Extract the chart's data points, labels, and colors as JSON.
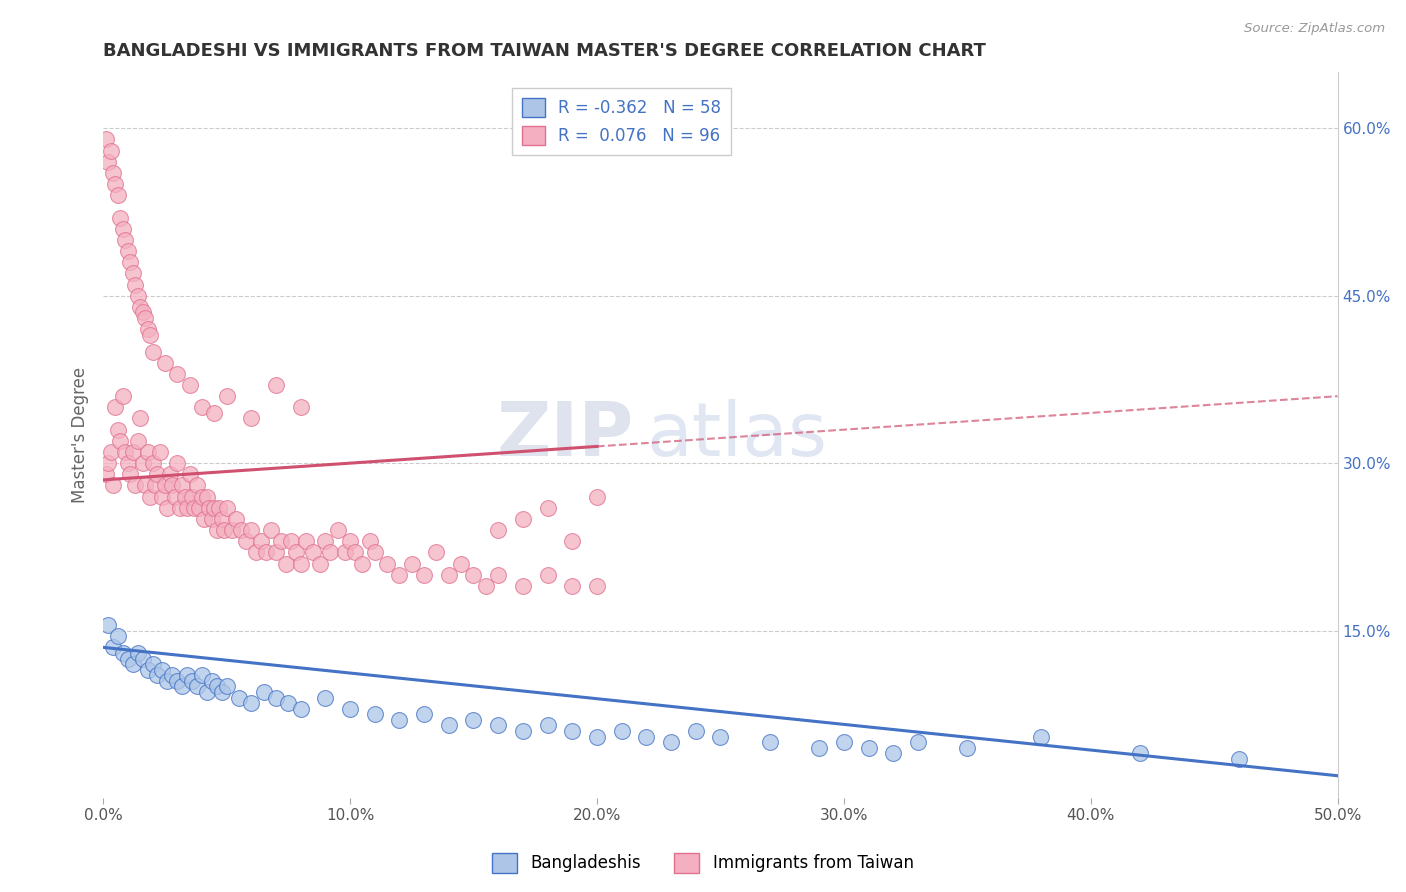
{
  "title": "BANGLADESHI VS IMMIGRANTS FROM TAIWAN MASTER'S DEGREE CORRELATION CHART",
  "source": "Source: ZipAtlas.com",
  "ylabel": "Master's Degree",
  "xlim": [
    0.0,
    0.5
  ],
  "ylim": [
    0.0,
    0.65
  ],
  "xtick_labels": [
    "0.0%",
    "10.0%",
    "20.0%",
    "30.0%",
    "40.0%",
    "50.0%"
  ],
  "xtick_vals": [
    0.0,
    0.1,
    0.2,
    0.3,
    0.4,
    0.5
  ],
  "ytick_labels_right": [
    "15.0%",
    "30.0%",
    "45.0%",
    "60.0%"
  ],
  "ytick_vals_right": [
    0.15,
    0.3,
    0.45,
    0.6
  ],
  "blue_fill": "#adc6e8",
  "pink_fill": "#f4b0c0",
  "blue_edge": "#4472c4",
  "pink_edge": "#e07090",
  "blue_line_color": "#4472c4",
  "pink_line_color": "#d05070",
  "blue_R": -0.362,
  "blue_N": 58,
  "pink_R": 0.076,
  "pink_N": 96,
  "watermark_zip": "ZIP",
  "watermark_atlas": "atlas",
  "legend_label_blue": "Bangladeshis",
  "legend_label_pink": "Immigrants from Taiwan",
  "blue_scatter_x": [
    0.002,
    0.004,
    0.006,
    0.008,
    0.01,
    0.012,
    0.014,
    0.016,
    0.018,
    0.02,
    0.022,
    0.024,
    0.026,
    0.028,
    0.03,
    0.032,
    0.034,
    0.036,
    0.038,
    0.04,
    0.042,
    0.044,
    0.046,
    0.048,
    0.05,
    0.055,
    0.06,
    0.065,
    0.07,
    0.075,
    0.08,
    0.09,
    0.1,
    0.11,
    0.12,
    0.13,
    0.14,
    0.15,
    0.16,
    0.17,
    0.18,
    0.19,
    0.2,
    0.21,
    0.22,
    0.23,
    0.24,
    0.25,
    0.27,
    0.29,
    0.3,
    0.31,
    0.32,
    0.33,
    0.35,
    0.38,
    0.42,
    0.46
  ],
  "blue_scatter_y": [
    0.155,
    0.135,
    0.145,
    0.13,
    0.125,
    0.12,
    0.13,
    0.125,
    0.115,
    0.12,
    0.11,
    0.115,
    0.105,
    0.11,
    0.105,
    0.1,
    0.11,
    0.105,
    0.1,
    0.11,
    0.095,
    0.105,
    0.1,
    0.095,
    0.1,
    0.09,
    0.085,
    0.095,
    0.09,
    0.085,
    0.08,
    0.09,
    0.08,
    0.075,
    0.07,
    0.075,
    0.065,
    0.07,
    0.065,
    0.06,
    0.065,
    0.06,
    0.055,
    0.06,
    0.055,
    0.05,
    0.06,
    0.055,
    0.05,
    0.045,
    0.05,
    0.045,
    0.04,
    0.05,
    0.045,
    0.055,
    0.04,
    0.035
  ],
  "pink_scatter_x": [
    0.001,
    0.002,
    0.003,
    0.004,
    0.005,
    0.006,
    0.007,
    0.008,
    0.009,
    0.01,
    0.011,
    0.012,
    0.013,
    0.014,
    0.015,
    0.016,
    0.017,
    0.018,
    0.019,
    0.02,
    0.021,
    0.022,
    0.023,
    0.024,
    0.025,
    0.026,
    0.027,
    0.028,
    0.029,
    0.03,
    0.031,
    0.032,
    0.033,
    0.034,
    0.035,
    0.036,
    0.037,
    0.038,
    0.039,
    0.04,
    0.041,
    0.042,
    0.043,
    0.044,
    0.045,
    0.046,
    0.047,
    0.048,
    0.049,
    0.05,
    0.052,
    0.054,
    0.056,
    0.058,
    0.06,
    0.062,
    0.064,
    0.066,
    0.068,
    0.07,
    0.072,
    0.074,
    0.076,
    0.078,
    0.08,
    0.082,
    0.085,
    0.088,
    0.09,
    0.092,
    0.095,
    0.098,
    0.1,
    0.102,
    0.105,
    0.108,
    0.11,
    0.115,
    0.12,
    0.125,
    0.13,
    0.135,
    0.14,
    0.145,
    0.15,
    0.155,
    0.16,
    0.17,
    0.18,
    0.19,
    0.2,
    0.2,
    0.19,
    0.18,
    0.17,
    0.16
  ],
  "pink_scatter_y": [
    0.29,
    0.3,
    0.31,
    0.28,
    0.35,
    0.33,
    0.32,
    0.36,
    0.31,
    0.3,
    0.29,
    0.31,
    0.28,
    0.32,
    0.34,
    0.3,
    0.28,
    0.31,
    0.27,
    0.3,
    0.28,
    0.29,
    0.31,
    0.27,
    0.28,
    0.26,
    0.29,
    0.28,
    0.27,
    0.3,
    0.26,
    0.28,
    0.27,
    0.26,
    0.29,
    0.27,
    0.26,
    0.28,
    0.26,
    0.27,
    0.25,
    0.27,
    0.26,
    0.25,
    0.26,
    0.24,
    0.26,
    0.25,
    0.24,
    0.26,
    0.24,
    0.25,
    0.24,
    0.23,
    0.24,
    0.22,
    0.23,
    0.22,
    0.24,
    0.22,
    0.23,
    0.21,
    0.23,
    0.22,
    0.21,
    0.23,
    0.22,
    0.21,
    0.23,
    0.22,
    0.24,
    0.22,
    0.23,
    0.22,
    0.21,
    0.23,
    0.22,
    0.21,
    0.2,
    0.21,
    0.2,
    0.22,
    0.2,
    0.21,
    0.2,
    0.19,
    0.2,
    0.19,
    0.2,
    0.19,
    0.19,
    0.27,
    0.23,
    0.26,
    0.25,
    0.24
  ],
  "pink_scatter_high_x": [
    0.001,
    0.002,
    0.003,
    0.004,
    0.005,
    0.006,
    0.007,
    0.008,
    0.009,
    0.01,
    0.011,
    0.012,
    0.013,
    0.014,
    0.015,
    0.016,
    0.017,
    0.018,
    0.019,
    0.02,
    0.025,
    0.03,
    0.035,
    0.04,
    0.045,
    0.05,
    0.06,
    0.07,
    0.08
  ],
  "pink_scatter_high_y": [
    0.59,
    0.57,
    0.58,
    0.56,
    0.55,
    0.54,
    0.52,
    0.51,
    0.5,
    0.49,
    0.48,
    0.47,
    0.46,
    0.45,
    0.44,
    0.435,
    0.43,
    0.42,
    0.415,
    0.4,
    0.39,
    0.38,
    0.37,
    0.35,
    0.345,
    0.36,
    0.34,
    0.37,
    0.35
  ],
  "background_color": "#ffffff",
  "grid_color": "#cccccc",
  "title_color": "#333333",
  "axis_label_color": "#666666",
  "right_axis_color": "#4472c4",
  "blue_trend_x0": 0.0,
  "blue_trend_y0": 0.135,
  "blue_trend_x1": 0.5,
  "blue_trend_y1": 0.02,
  "pink_trend_solid_x0": 0.0,
  "pink_trend_solid_y0": 0.285,
  "pink_trend_solid_x1": 0.2,
  "pink_trend_solid_y1": 0.315,
  "pink_trend_dash_x0": 0.2,
  "pink_trend_dash_y0": 0.315,
  "pink_trend_dash_x1": 0.5,
  "pink_trend_dash_y1": 0.36
}
